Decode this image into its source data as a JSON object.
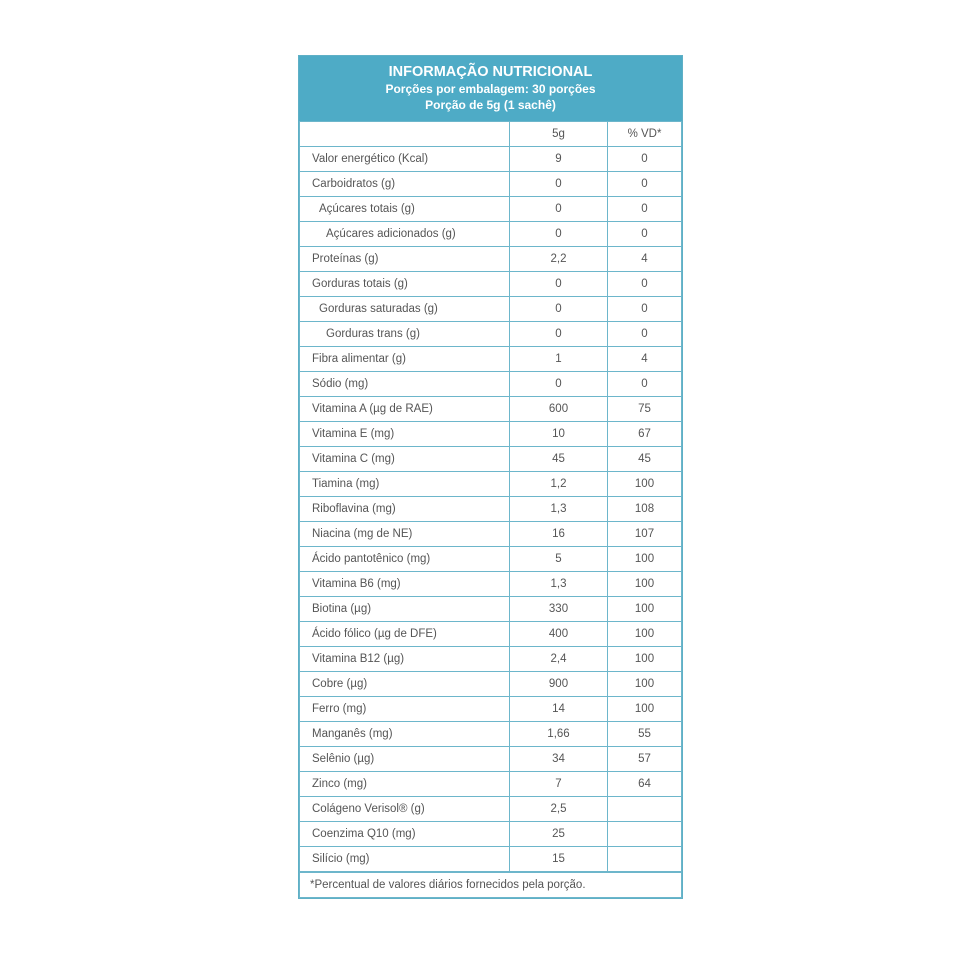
{
  "header": {
    "title": "INFORMAÇÃO NUTRICIONAL",
    "servings": "Porções por embalagem: 30 porções",
    "portion": "Porção de 5g (1 sachê)"
  },
  "columns": {
    "amount": "5g",
    "dv": "% VD*"
  },
  "colors": {
    "header_bg": "#4eabc6",
    "border": "#6db6cb"
  },
  "rows": [
    {
      "name": "Valor energético (Kcal)",
      "amount": "9",
      "dv": "0",
      "indent": 0
    },
    {
      "name": "Carboidratos (g)",
      "amount": "0",
      "dv": "0",
      "indent": 0
    },
    {
      "name": "Açúcares totais (g)",
      "amount": "0",
      "dv": "0",
      "indent": 1
    },
    {
      "name": "Açúcares adicionados (g)",
      "amount": "0",
      "dv": "0",
      "indent": 2
    },
    {
      "name": "Proteínas (g)",
      "amount": "2,2",
      "dv": "4",
      "indent": 0
    },
    {
      "name": "Gorduras totais (g)",
      "amount": "0",
      "dv": "0",
      "indent": 0
    },
    {
      "name": "Gorduras saturadas (g)",
      "amount": "0",
      "dv": "0",
      "indent": 1
    },
    {
      "name": "Gorduras trans (g)",
      "amount": "0",
      "dv": "0",
      "indent": 2
    },
    {
      "name": "Fibra alimentar (g)",
      "amount": "1",
      "dv": "4",
      "indent": 0
    },
    {
      "name": "Sódio (mg)",
      "amount": "0",
      "dv": "0",
      "indent": 0
    },
    {
      "name": "Vitamina A (µg de RAE)",
      "amount": "600",
      "dv": "75",
      "indent": 0
    },
    {
      "name": "Vitamina E (mg)",
      "amount": "10",
      "dv": "67",
      "indent": 0
    },
    {
      "name": "Vitamina C (mg)",
      "amount": "45",
      "dv": "45",
      "indent": 0
    },
    {
      "name": "Tiamina (mg)",
      "amount": "1,2",
      "dv": "100",
      "indent": 0
    },
    {
      "name": "Riboflavina (mg)",
      "amount": "1,3",
      "dv": "108",
      "indent": 0
    },
    {
      "name": "Niacina (mg de NE)",
      "amount": "16",
      "dv": "107",
      "indent": 0
    },
    {
      "name": "Ácido pantotênico (mg)",
      "amount": "5",
      "dv": "100",
      "indent": 0
    },
    {
      "name": "Vitamina B6 (mg)",
      "amount": "1,3",
      "dv": "100",
      "indent": 0
    },
    {
      "name": "Biotina (µg)",
      "amount": "330",
      "dv": "100",
      "indent": 0
    },
    {
      "name": "Ácido fólico (µg de DFE)",
      "amount": "400",
      "dv": "100",
      "indent": 0
    },
    {
      "name": "Vitamina B12 (µg)",
      "amount": "2,4",
      "dv": "100",
      "indent": 0
    },
    {
      "name": "Cobre (µg)",
      "amount": "900",
      "dv": "100",
      "indent": 0
    },
    {
      "name": "Ferro (mg)",
      "amount": "14",
      "dv": "100",
      "indent": 0
    },
    {
      "name": "Manganês (mg)",
      "amount": "1,66",
      "dv": "55",
      "indent": 0
    },
    {
      "name": "Selênio (µg)",
      "amount": "34",
      "dv": "57",
      "indent": 0
    },
    {
      "name": "Zinco (mg)",
      "amount": "7",
      "dv": "64",
      "indent": 0
    },
    {
      "name": "Colágeno Verisol® (g)",
      "amount": "2,5",
      "dv": "",
      "indent": 0
    },
    {
      "name": "Coenzima Q10 (mg)",
      "amount": "25",
      "dv": "",
      "indent": 0
    },
    {
      "name": "Silício (mg)",
      "amount": "15",
      "dv": "",
      "indent": 0
    }
  ],
  "footnote": "*Percentual de valores diários fornecidos pela porção."
}
